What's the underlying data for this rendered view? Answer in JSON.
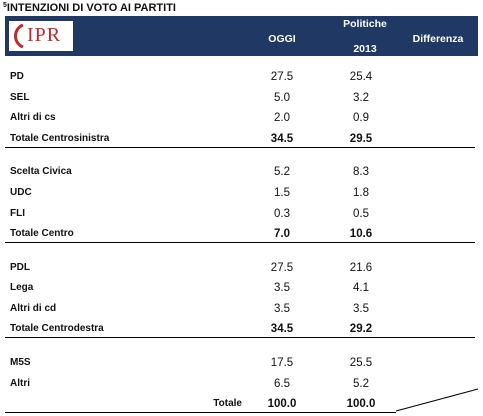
{
  "title_number": "5",
  "title": "INTENZIONI DI VOTO AI PARTITI",
  "header": {
    "logo": "IPR",
    "col1": "OGGI",
    "col2_top": "Politiche",
    "col2_bottom": "2013",
    "col3": "Differenza"
  },
  "groups": [
    {
      "rows": [
        [
          "PD",
          "27.5",
          "25.4"
        ],
        [
          "SEL",
          "5.0",
          "3.2"
        ],
        [
          "Altri di cs",
          "2.0",
          "0.9"
        ]
      ],
      "total": [
        "Totale Centrosinistra",
        "34.5",
        "29.5"
      ]
    },
    {
      "rows": [
        [
          "Scelta Civica",
          "5.2",
          "8.3"
        ],
        [
          "UDC",
          "1.5",
          "1.8"
        ],
        [
          "FLI",
          "0.3",
          "0.5"
        ]
      ],
      "total": [
        "Totale  Centro",
        "7.0",
        "10.6"
      ]
    },
    {
      "rows": [
        [
          "PDL",
          "27.5",
          "21.6"
        ],
        [
          "Lega",
          "3.5",
          "4.1"
        ],
        [
          "Altri di cd",
          "3.5",
          "3.5"
        ]
      ],
      "total": [
        "Totale Centrodestra",
        "34.5",
        "29.2"
      ]
    },
    {
      "rows": [
        [
          "M5S",
          "17.5",
          "25.5"
        ],
        [
          "Altri",
          "6.5",
          "5.2"
        ]
      ],
      "total": [
        "Totale",
        "100.0",
        "100.0"
      ]
    }
  ]
}
